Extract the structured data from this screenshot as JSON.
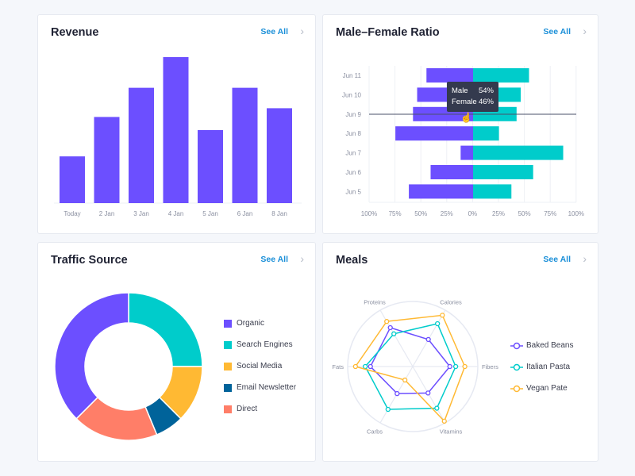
{
  "colors": {
    "purple": "#6c4fff",
    "teal": "#00cccb",
    "yellow": "#ffb933",
    "navy": "#00639a",
    "coral": "#ff7e68",
    "link": "#1a8fd8"
  },
  "see_all": "See All",
  "chart_data": [
    {
      "type": "bar",
      "title": "Revenue",
      "categories": [
        "Today",
        "2 Jan",
        "3 Jan",
        "4 Jan",
        "5 Jan",
        "6 Jan",
        "8 Jan"
      ],
      "values": [
        32,
        59,
        79,
        100,
        50,
        79,
        65
      ],
      "grid": false
    },
    {
      "type": "bar",
      "orientation": "horizontal-diverging",
      "title": "Male–Female Ratio",
      "categories": [
        "Jun 11",
        "Jun 10",
        "Jun 9",
        "Jun 8",
        "Jun 7",
        "Jun 6",
        "Jun 5"
      ],
      "series": [
        {
          "name": "Male",
          "values": [
            45,
            54,
            58,
            75,
            12,
            41,
            62
          ]
        },
        {
          "name": "Female",
          "values": [
            54,
            46,
            42,
            25,
            87,
            58,
            37
          ]
        }
      ],
      "xticks": [
        "100%",
        "75%",
        "50%",
        "25%",
        "0%",
        "25%",
        "50%",
        "75%",
        "100%"
      ],
      "xlim": [
        -100,
        100
      ],
      "grid": true,
      "tooltip": {
        "rows": [
          {
            "label": "Male",
            "value": "54%"
          },
          {
            "label": "Female",
            "value": "46%"
          }
        ]
      }
    },
    {
      "type": "pie",
      "donut": true,
      "title": "Traffic Source",
      "legend": "right",
      "labels": [
        "Organic",
        "Search Engines",
        "Social Media",
        "Email Newsletter",
        "Direct"
      ],
      "values": [
        37.5,
        25,
        12.5,
        6.25,
        18.75
      ]
    },
    {
      "type": "radar",
      "title": "Meals",
      "legend": "right",
      "axes": [
        "Fibers",
        "Calories",
        "Proteins",
        "Fats",
        "Carbs",
        "Vitamins"
      ],
      "rlim": [
        0,
        100
      ],
      "series": [
        {
          "name": "Baked Beans",
          "values": [
            57,
            48,
            69,
            65,
            48,
            47
          ]
        },
        {
          "name": "Italian Pasta",
          "values": [
            66,
            76,
            58,
            73,
            76,
            74
          ]
        },
        {
          "name": "Vegan Pate",
          "values": [
            80,
            91,
            80,
            88,
            24,
            97
          ]
        }
      ]
    }
  ]
}
